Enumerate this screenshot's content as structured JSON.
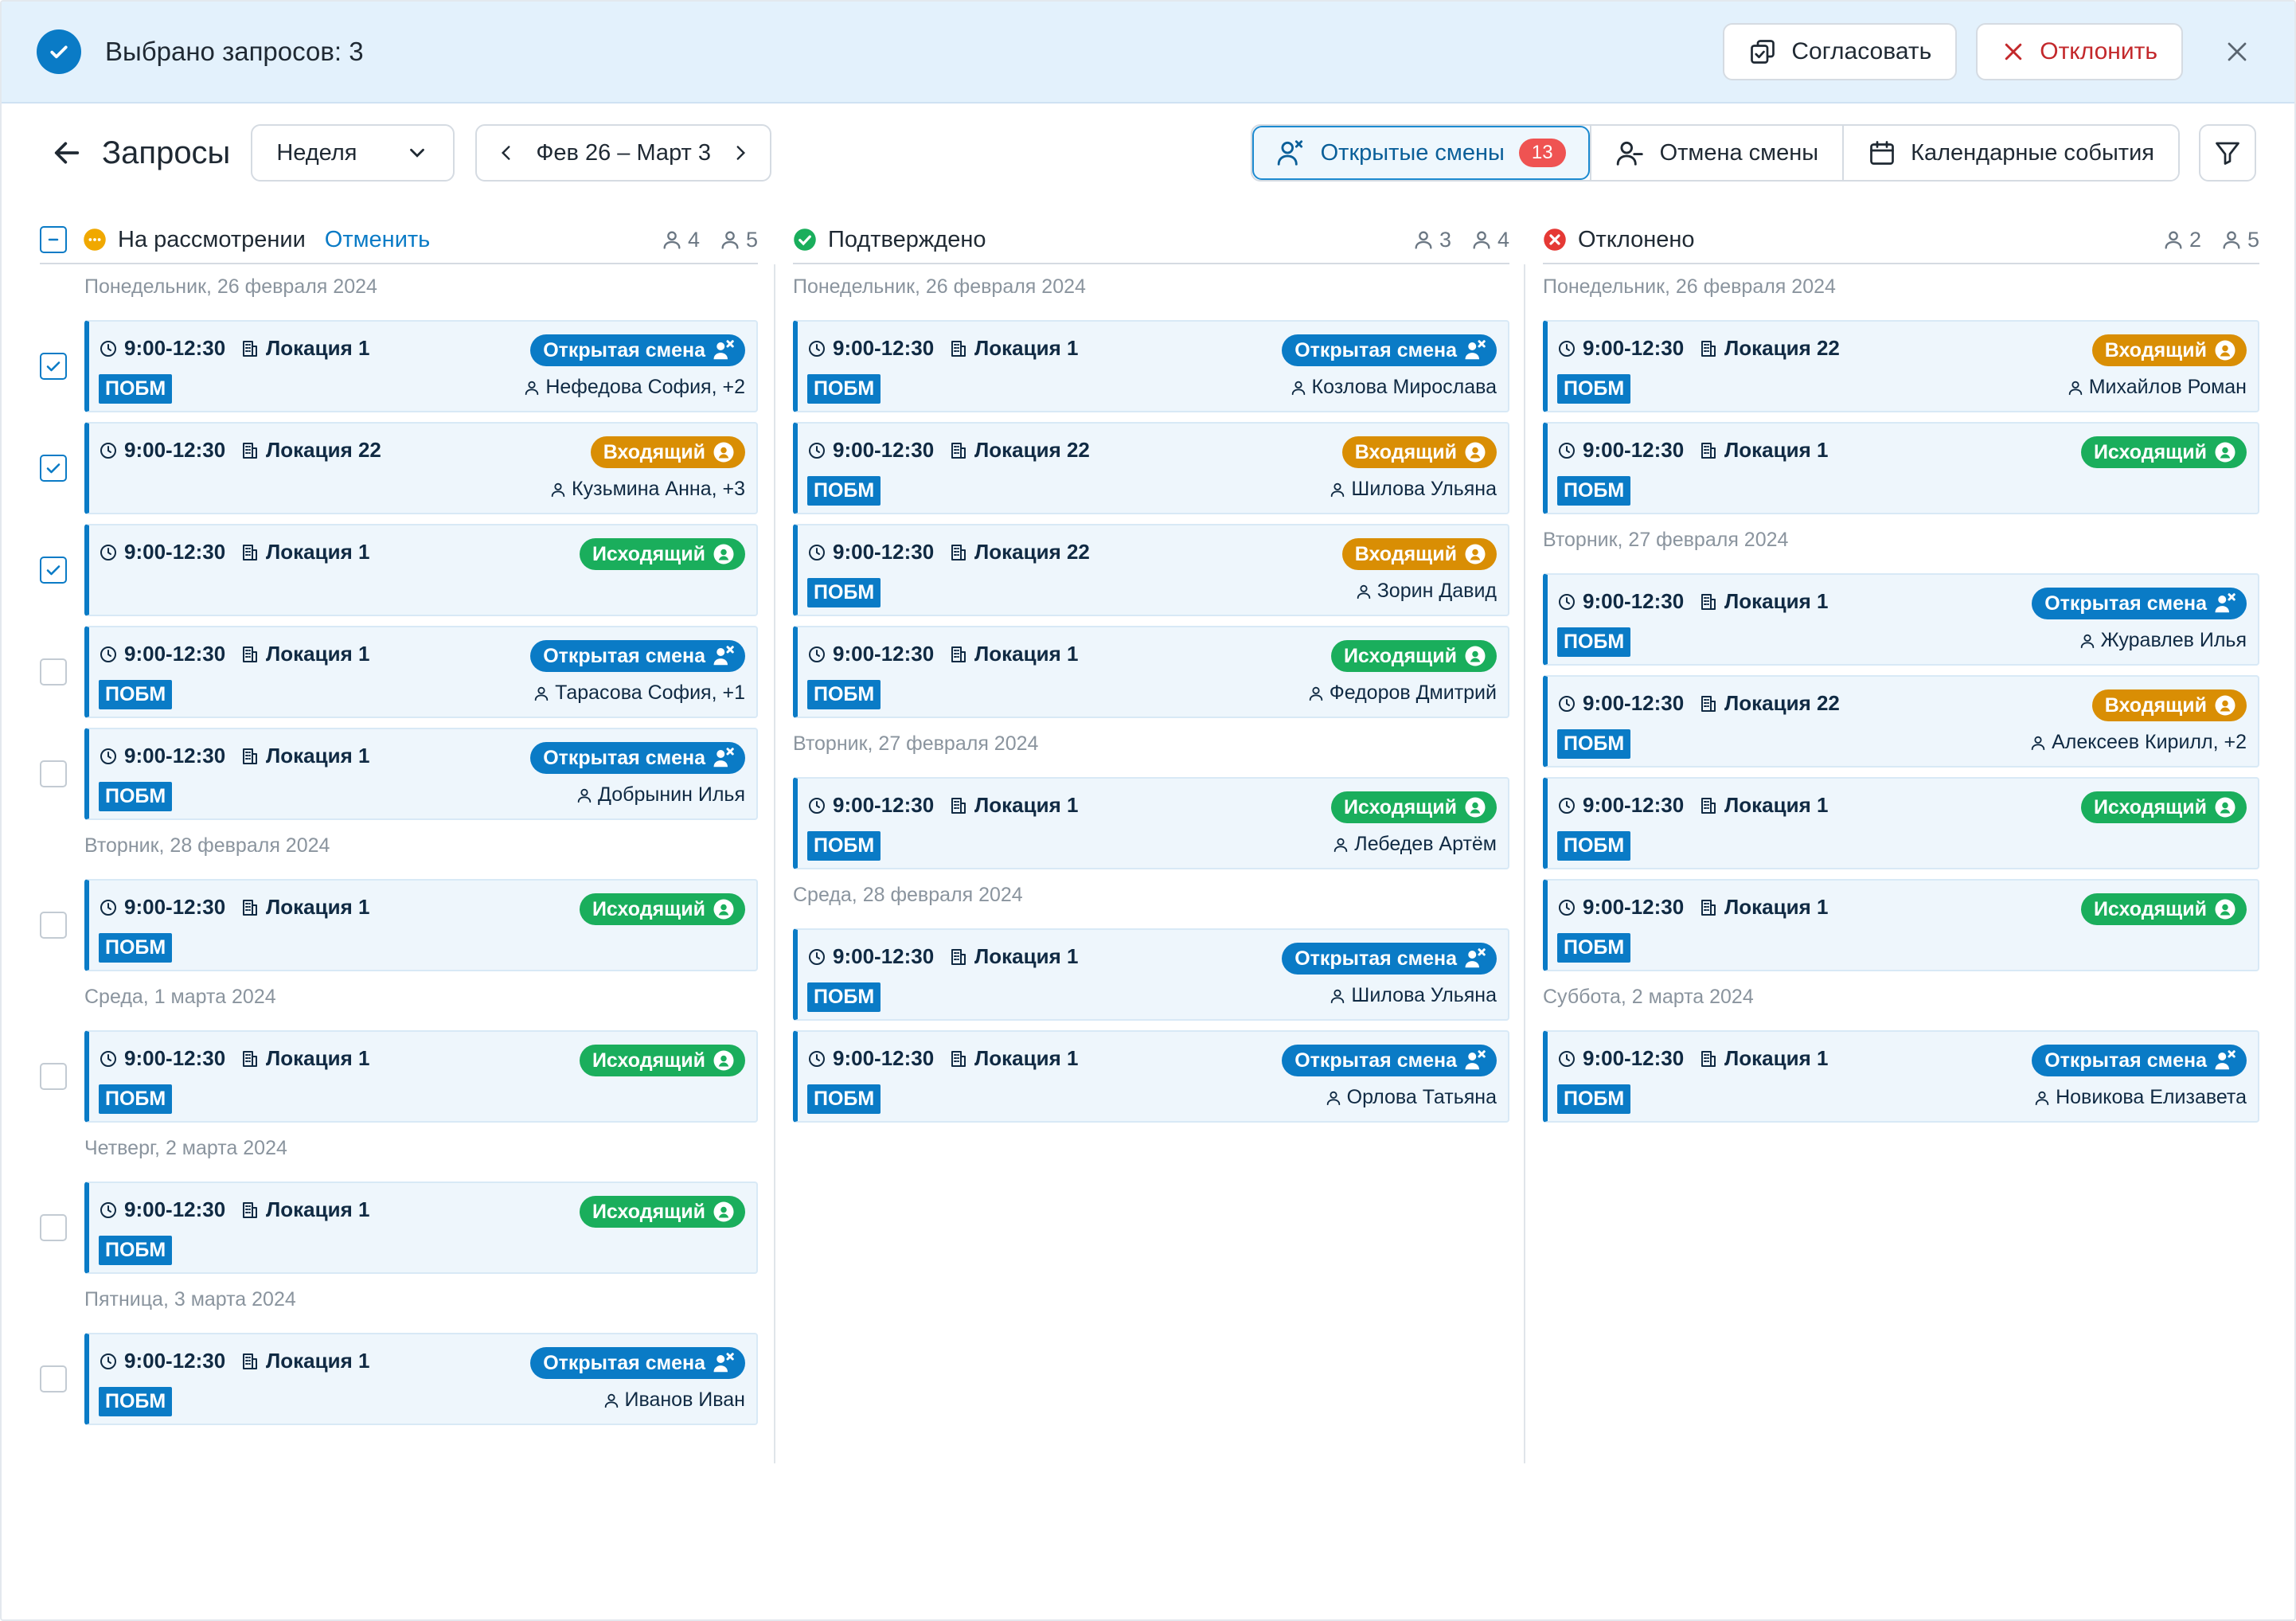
{
  "selection": {
    "text": "Выбрано запросов: 3",
    "approve_label": "Согласовать",
    "reject_label": "Отклонить"
  },
  "header": {
    "title": "Запросы",
    "period": "Неделя",
    "range": "Фев 26 – Март 3",
    "tabs": [
      {
        "label": "Открытые смены",
        "badge": "13",
        "active": true
      },
      {
        "label": "Отмена смены"
      },
      {
        "label": "Календарные события"
      }
    ]
  },
  "columns": [
    {
      "status": "На рассмотрении",
      "action": "Отменить",
      "status_color": "#f0a800",
      "people_count": "4",
      "swap_count": "5",
      "groups": [
        {
          "day": "Понедельник, 26 февраля 2024",
          "items": [
            {
              "time": "9:00-12:30",
              "location": "Локация 1",
              "type": "open",
              "type_label": "Открытая смена",
              "tag": "ПОБМ",
              "person": "Нефедова София, +2",
              "checked": true
            },
            {
              "time": "9:00-12:30",
              "location": "Локация 22",
              "type": "in",
              "type_label": "Входящий",
              "tag": "",
              "person": "Кузьмина Анна, +3",
              "checked": true
            },
            {
              "time": "9:00-12:30",
              "location": "Локация 1",
              "type": "out",
              "type_label": "Исходящий",
              "tag": "",
              "person": "",
              "checked": true
            },
            {
              "time": "9:00-12:30",
              "location": "Локация 1",
              "type": "open",
              "type_label": "Открытая смена",
              "tag": "ПОБМ",
              "person": "Тарасова София, +1",
              "checked": false
            },
            {
              "time": "9:00-12:30",
              "location": "Локация 1",
              "type": "open",
              "type_label": "Открытая смена",
              "tag": "ПОБМ",
              "person": "Добрынин Илья",
              "checked": false
            }
          ]
        },
        {
          "day": "Вторник, 28 февраля 2024",
          "items": [
            {
              "time": "9:00-12:30",
              "location": "Локация 1",
              "type": "out",
              "type_label": "Исходящий",
              "tag": "ПОБМ",
              "person": "",
              "checked": false
            }
          ]
        },
        {
          "day": "Среда, 1 марта 2024",
          "items": [
            {
              "time": "9:00-12:30",
              "location": "Локация 1",
              "type": "out",
              "type_label": "Исходящий",
              "tag": "ПОБМ",
              "person": "",
              "checked": false
            }
          ]
        },
        {
          "day": "Четверг, 2 марта 2024",
          "items": [
            {
              "time": "9:00-12:30",
              "location": "Локация 1",
              "type": "out",
              "type_label": "Исходящий",
              "tag": "ПОБМ",
              "person": "",
              "checked": false
            }
          ]
        },
        {
          "day": "Пятница, 3 марта 2024",
          "items": [
            {
              "time": "9:00-12:30",
              "location": "Локация 1",
              "type": "open",
              "type_label": "Открытая смена",
              "tag": "ПОБМ",
              "person": "Иванов Иван",
              "checked": false
            }
          ]
        }
      ]
    },
    {
      "status": "Подтверждено",
      "action": "",
      "status_color": "#1aae5c",
      "people_count": "3",
      "swap_count": "4",
      "groups": [
        {
          "day": "Понедельник, 26 февраля 2024",
          "items": [
            {
              "time": "9:00-12:30",
              "location": "Локация 1",
              "type": "open",
              "type_label": "Открытая смена",
              "tag": "ПОБМ",
              "person": "Козлова Мирослава"
            },
            {
              "time": "9:00-12:30",
              "location": "Локация 22",
              "type": "in",
              "type_label": "Входящий",
              "tag": "ПОБМ",
              "person": "Шилова Ульяна"
            },
            {
              "time": "9:00-12:30",
              "location": "Локация 22",
              "type": "in",
              "type_label": "Входящий",
              "tag": "ПОБМ",
              "person": "Зорин Давид"
            },
            {
              "time": "9:00-12:30",
              "location": "Локация 1",
              "type": "out",
              "type_label": "Исходящий",
              "tag": "ПОБМ",
              "person": "Федоров Дмитрий"
            }
          ]
        },
        {
          "day": "Вторник, 27 февраля 2024",
          "items": [
            {
              "time": "9:00-12:30",
              "location": "Локация 1",
              "type": "out",
              "type_label": "Исходящий",
              "tag": "ПОБМ",
              "person": "Лебедев Артём"
            }
          ]
        },
        {
          "day": "Среда, 28 февраля 2024",
          "items": [
            {
              "time": "9:00-12:30",
              "location": "Локация 1",
              "type": "open",
              "type_label": "Открытая смена",
              "tag": "ПОБМ",
              "person": "Шилова Ульяна"
            },
            {
              "time": "9:00-12:30",
              "location": "Локация 1",
              "type": "open",
              "type_label": "Открытая смена",
              "tag": "ПОБМ",
              "person": "Орлова Татьяна"
            }
          ]
        }
      ]
    },
    {
      "status": "Отклонено",
      "action": "",
      "status_color": "#e53935",
      "people_count": "2",
      "swap_count": "5",
      "groups": [
        {
          "day": "Понедельник, 26 февраля 2024",
          "items": [
            {
              "time": "9:00-12:30",
              "location": "Локация 22",
              "type": "in",
              "type_label": "Входящий",
              "tag": "ПОБМ",
              "person": "Михайлов Роман"
            },
            {
              "time": "9:00-12:30",
              "location": "Локация 1",
              "type": "out",
              "type_label": "Исходящий",
              "tag": "ПОБМ",
              "person": ""
            }
          ]
        },
        {
          "day": "Вторник, 27 февраля 2024",
          "items": [
            {
              "time": "9:00-12:30",
              "location": "Локация 1",
              "type": "open",
              "type_label": "Открытая смена",
              "tag": "ПОБМ",
              "person": "Журавлев Илья"
            },
            {
              "time": "9:00-12:30",
              "location": "Локация 22",
              "type": "in",
              "type_label": "Входящий",
              "tag": "ПОБМ",
              "person": "Алексеев Кирилл, +2"
            },
            {
              "time": "9:00-12:30",
              "location": "Локация 1",
              "type": "out",
              "type_label": "Исходящий",
              "tag": "ПОБМ",
              "person": ""
            },
            {
              "time": "9:00-12:30",
              "location": "Локация 1",
              "type": "out",
              "type_label": "Исходящий",
              "tag": "ПОБМ",
              "person": ""
            }
          ]
        },
        {
          "day": "Суббота, 2 марта 2024",
          "items": [
            {
              "time": "9:00-12:30",
              "location": "Локация 1",
              "type": "open",
              "type_label": "Открытая смена",
              "tag": "ПОБМ",
              "person": "Новикова Елизавета"
            }
          ]
        }
      ]
    }
  ]
}
